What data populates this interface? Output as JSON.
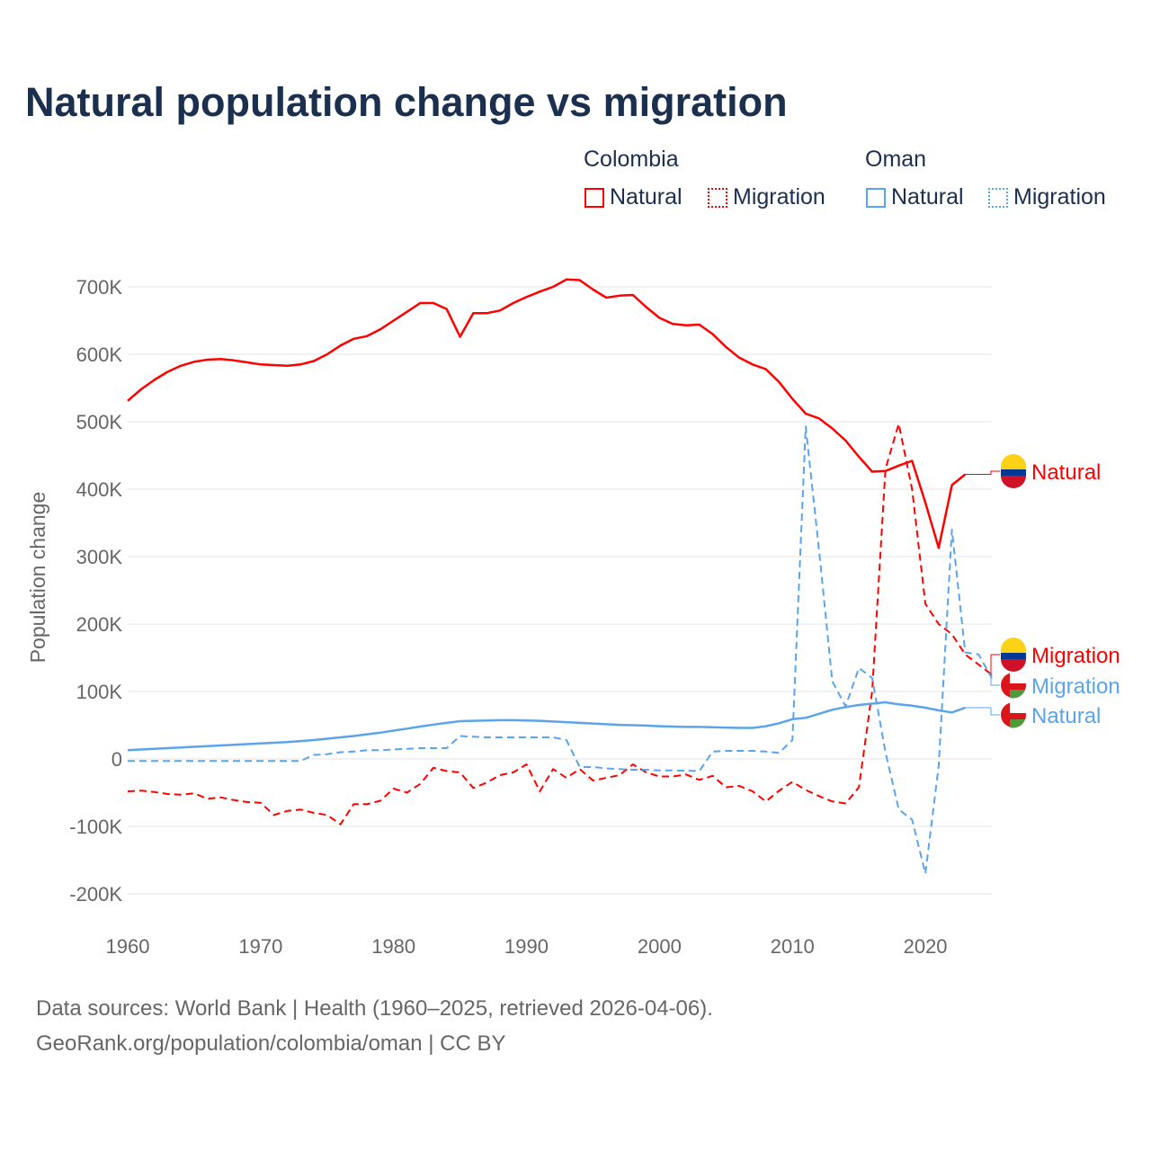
{
  "chart_data": {
    "type": "line",
    "title": "Natural population change vs migration",
    "ylabel": "Population change",
    "xlabel": "",
    "xlim": [
      1960,
      2025
    ],
    "ylim": [
      -200000,
      700000
    ],
    "xticks": [
      "1960",
      "1970",
      "1980",
      "1990",
      "2000",
      "2010",
      "2020"
    ],
    "yticks": [
      "700K",
      "600K",
      "500K",
      "400K",
      "300K",
      "200K",
      "100K",
      "0",
      "-100K",
      "-200K"
    ],
    "grid": true,
    "legend": {
      "placement": "top-right",
      "groups": [
        {
          "name": "Colombia",
          "items": [
            "Natural",
            "Migration"
          ]
        },
        {
          "name": "Oman",
          "items": [
            "Natural",
            "Migration"
          ]
        }
      ]
    },
    "x_start": 1960,
    "series": [
      {
        "name": "Colombia Natural",
        "label": "Natural",
        "country": "Colombia",
        "color": "#ff0000",
        "dash": false,
        "values": [
          531000,
          548000,
          562000,
          574000,
          583000,
          589000,
          592000,
          593000,
          591000,
          588000,
          585000,
          584000,
          583000,
          585000,
          590000,
          600000,
          613000,
          623000,
          627000,
          637000,
          650000,
          663000,
          676000,
          676000,
          667000,
          626000,
          661000,
          661000,
          665000,
          676000,
          685000,
          693000,
          700000,
          711000,
          710000,
          696000,
          684000,
          687000,
          688000,
          670000,
          654000,
          645000,
          643000,
          644000,
          630000,
          611000,
          595000,
          585000,
          578000,
          559000,
          534000,
          512000,
          505000,
          490000,
          472000,
          448000,
          426000,
          427000,
          435000,
          442000,
          380000,
          313000,
          406000,
          422000
        ]
      },
      {
        "name": "Colombia Migration",
        "label": "Migration",
        "country": "Colombia",
        "color": "#ff0000",
        "dash": true,
        "values": [
          -48000,
          -47000,
          -49000,
          -52000,
          -53000,
          -51000,
          -59000,
          -57000,
          -61000,
          -64000,
          -65000,
          -83000,
          -77000,
          -75000,
          -80000,
          -83000,
          -97000,
          -67000,
          -67000,
          -62000,
          -44000,
          -50000,
          -37000,
          -13000,
          -18000,
          -20000,
          -43000,
          -35000,
          -24000,
          -20000,
          -8000,
          -48000,
          -15000,
          -28000,
          -15000,
          -32000,
          -28000,
          -24000,
          -8000,
          -20000,
          -26000,
          -26000,
          -23000,
          -31000,
          -25000,
          -42000,
          -40000,
          -48000,
          -63000,
          -47000,
          -34000,
          -46000,
          -55000,
          -63000,
          -66000,
          -42000,
          100000,
          430000,
          497000,
          400000,
          230000,
          200000,
          185000,
          155000,
          140000,
          125000
        ]
      },
      {
        "name": "Oman Natural",
        "label": "Natural",
        "country": "Oman",
        "color": "#5ba4ec",
        "dash": false,
        "values": [
          13000,
          14000,
          15000,
          16000,
          17000,
          18000,
          19000,
          20000,
          21000,
          22000,
          23000,
          24000,
          25000,
          26500,
          28000,
          30000,
          32000,
          34000,
          36500,
          39000,
          42000,
          45000,
          48000,
          51000,
          53500,
          56000,
          56500,
          57000,
          57500,
          57500,
          57000,
          56500,
          55500,
          54500,
          53500,
          52500,
          51500,
          50500,
          50000,
          49500,
          48500,
          48000,
          47500,
          47500,
          47000,
          46500,
          46000,
          46000,
          48500,
          53000,
          59000,
          61000,
          67000,
          73000,
          77000,
          80000,
          82000,
          84000,
          81000,
          79000,
          76000,
          72000,
          69000,
          76000
        ]
      },
      {
        "name": "Oman Migration",
        "label": "Migration",
        "country": "Oman",
        "color": "#5ba4ec",
        "dash": true,
        "values": [
          -3000,
          -3000,
          -3000,
          -3000,
          -3000,
          -3000,
          -3000,
          -3000,
          -3000,
          -3000,
          -3000,
          -3000,
          -3000,
          -3000,
          6000,
          7000,
          10000,
          11000,
          13000,
          13000,
          14000,
          15000,
          16000,
          16000,
          16000,
          34000,
          33000,
          32000,
          32000,
          32000,
          32000,
          32000,
          32000,
          28000,
          -12000,
          -12000,
          -14000,
          -15000,
          -16000,
          -16000,
          -17000,
          -17000,
          -17500,
          -18000,
          11000,
          12000,
          12000,
          12000,
          11000,
          9000,
          28000,
          493000,
          310000,
          115000,
          78000,
          135000,
          120000,
          10000,
          -75000,
          -90000,
          -170000,
          -10000,
          340000,
          158000,
          155000,
          120000
        ]
      }
    ],
    "end_labels": [
      {
        "text": "Natural",
        "series": 0,
        "flag": "colombia"
      },
      {
        "text": "Migration",
        "series": 1,
        "flag": "colombia"
      },
      {
        "text": "Migration",
        "series": 3,
        "flag": "oman"
      },
      {
        "text": "Natural",
        "series": 2,
        "flag": "oman"
      }
    ]
  },
  "footer": {
    "line1": "Data sources: World Bank | Health (1960–2025, retrieved 2026-04-06).",
    "line2": "GeoRank.org/population/colombia/oman | CC BY"
  }
}
